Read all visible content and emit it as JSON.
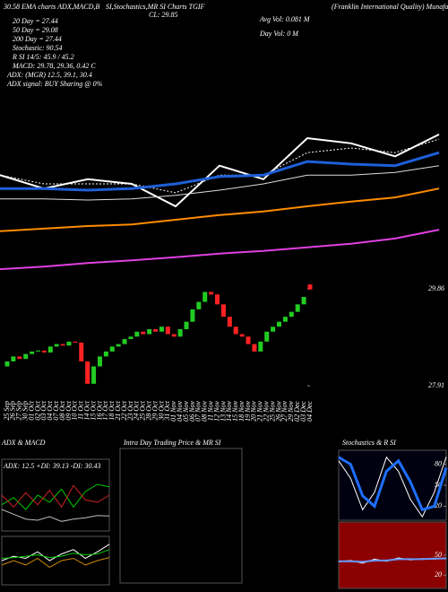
{
  "chart_data": [
    {
      "type": "line",
      "ylim": [
        25.5,
        30.5
      ],
      "annotations": [
        "30.58 EMA charts ADX,MACD,B",
        "SI,Stochastics,MR SI Charts TGIF",
        "(Franklin International Quality) MunafaSutra.com",
        "CL: 29.85",
        "Avg Vol: 0.081 M",
        "Day Vol: 0 M",
        "20 Day = 27.44",
        "50 Day = 29.08",
        "200 Day = 27.44",
        "Stochastic: 90.54",
        "R SI 14/5: 45.9 / 45.2",
        "MACD: 29.78, 29.36, 0.42 C",
        "ADX: (MGR) 12.5, 39.1, 30.4",
        "ADX signal: BUY Sharing @ 0%"
      ],
      "series": [
        {
          "color": "#ffffff",
          "width": 2,
          "values": [
            27.48,
            27.22,
            27.4,
            27.31,
            26.88,
            27.66,
            27.4,
            28.19,
            28.09,
            27.84,
            28.26
          ]
        },
        {
          "color": "#ffffff",
          "width": 1,
          "dashed": true,
          "values": [
            27.48,
            27.31,
            27.31,
            27.31,
            27.14,
            27.48,
            27.48,
            27.91,
            28.0,
            27.91,
            28.17
          ]
        },
        {
          "color": "#1e5fd8",
          "width": 3,
          "values": [
            27.22,
            27.22,
            27.19,
            27.22,
            27.31,
            27.45,
            27.48,
            27.74,
            27.69,
            27.66,
            27.91
          ]
        },
        {
          "color": "#dddddd",
          "width": 1,
          "values": [
            27.02,
            27.02,
            27.0,
            27.02,
            27.09,
            27.19,
            27.31,
            27.48,
            27.48,
            27.53,
            27.66
          ]
        },
        {
          "color": "#ff8c00",
          "width": 2,
          "values": [
            26.4,
            26.45,
            26.5,
            26.53,
            26.62,
            26.71,
            26.78,
            26.88,
            26.97,
            27.05,
            27.22
          ]
        },
        {
          "color": "#e040e0",
          "width": 2,
          "values": [
            25.67,
            25.72,
            25.79,
            25.84,
            25.9,
            25.97,
            26.02,
            26.09,
            26.16,
            26.26,
            26.43
          ]
        }
      ]
    },
    {
      "type": "candlestick",
      "ylim": [
        27.64,
        30.08
      ],
      "yticks": [
        29.86,
        27.91
      ],
      "up_color": "#22cc22",
      "down_color": "#ff2222",
      "categories": [
        "25 Sep",
        "26 Sep",
        "27 Sep",
        "30 Sep",
        "01 Oct",
        "02 Oct",
        "03 Oct",
        "04 Oct",
        "07 Oct",
        "08 Oct",
        "09 Oct",
        "10 Oct",
        "11 Oct",
        "14 Oct",
        "15 Oct",
        "16 Oct",
        "17 Oct",
        "18 Oct",
        "21 Oct",
        "22 Oct",
        "23 Oct",
        "24 Oct",
        "25 Oct",
        "28 Oct",
        "29 Oct",
        "30 Oct",
        "31 Oct",
        "01 Nov",
        "04 Nov",
        "05 Nov",
        "06 Nov",
        "07 Nov",
        "08 Nov",
        "11 Nov",
        "12 Nov",
        "13 Nov",
        "14 Nov",
        "15 Nov",
        "18 Nov",
        "19 Nov",
        "20 Nov",
        "21 Nov",
        "22 Nov",
        "25 Nov",
        "26 Nov",
        "27 Nov",
        "29 Nov",
        "02 Dec",
        "03 Dec",
        "04 Dec"
      ],
      "open": [
        28.3,
        28.4,
        28.5,
        28.45,
        28.55,
        28.6,
        28.62,
        28.58,
        28.7,
        28.75,
        28.72,
        28.8,
        28.78,
        28.4,
        27.95,
        28.3,
        28.5,
        28.6,
        28.7,
        28.75,
        28.85,
        28.9,
        29.0,
        28.95,
        29.05,
        29.0,
        29.1,
        28.95,
        28.9,
        29.05,
        29.2,
        29.45,
        29.6,
        29.8,
        29.75,
        29.55,
        29.3,
        29.1,
        28.95,
        28.9,
        28.75,
        28.6,
        28.8,
        29.0,
        29.1,
        29.2,
        29.3,
        29.4,
        29.55,
        29.95
      ],
      "close": [
        28.4,
        28.5,
        28.45,
        28.55,
        28.6,
        28.62,
        28.58,
        28.7,
        28.75,
        28.72,
        28.8,
        28.78,
        28.4,
        27.95,
        28.3,
        28.5,
        28.6,
        28.7,
        28.75,
        28.85,
        28.9,
        29.0,
        28.95,
        29.05,
        29.0,
        29.1,
        28.95,
        28.9,
        29.05,
        29.2,
        29.45,
        29.6,
        29.8,
        29.75,
        29.55,
        29.3,
        29.1,
        28.95,
        28.9,
        28.75,
        28.6,
        28.8,
        29.0,
        29.1,
        29.2,
        29.3,
        29.4,
        29.55,
        29.7,
        29.85
      ]
    },
    {
      "type": "line",
      "title": "ADX & MACD",
      "subtitle": "ADX: 12.5 +DI: 39.13 -DI: 30.43",
      "ylim": [
        0,
        60
      ],
      "background": "#000000",
      "series": [
        {
          "color": "#00cc00",
          "width": 1,
          "values": [
            22,
            28,
            18,
            30,
            24,
            35,
            20,
            33,
            39,
            37
          ]
        },
        {
          "color": "#cc2222",
          "width": 1,
          "values": [
            30,
            20,
            32,
            22,
            34,
            20,
            38,
            26,
            24,
            30
          ]
        },
        {
          "color": "#bbbbbb",
          "width": 1,
          "values": [
            18,
            14,
            10,
            9,
            12,
            8,
            10,
            11,
            13,
            12.5
          ]
        }
      ]
    },
    {
      "type": "line",
      "ylim": [
        -0.5,
        0.6
      ],
      "background": "#000000",
      "series": [
        {
          "color": "#ffffff",
          "width": 1,
          "values": [
            0.05,
            0.15,
            0.1,
            0.25,
            0.05,
            0.2,
            0.3,
            0.1,
            0.25,
            0.42
          ]
        },
        {
          "color": "#00cc00",
          "width": 1,
          "values": [
            0.1,
            0.12,
            0.15,
            0.18,
            0.12,
            0.15,
            0.22,
            0.18,
            0.2,
            0.3
          ]
        },
        {
          "color": "#cc8800",
          "width": 1,
          "values": [
            -0.05,
            0.05,
            -0.05,
            0.1,
            -0.1,
            0.05,
            0.1,
            -0.05,
            0.05,
            0.12
          ]
        }
      ]
    },
    {
      "type": "line",
      "title": "Intra Day Trading Price & MR SI",
      "background": "#000000",
      "series": []
    },
    {
      "type": "line",
      "title": "Stochastics & R SI",
      "ylim": [
        0,
        100
      ],
      "yticks": [
        80,
        50,
        20
      ],
      "background": "#000010",
      "series": [
        {
          "color": "#ffffff",
          "width": 1,
          "values": [
            85,
            60,
            15,
            40,
            90,
            70,
            30,
            5,
            40,
            90.54
          ]
        },
        {
          "color": "#1e6fff",
          "width": 3,
          "values": [
            90,
            80,
            35,
            20,
            70,
            85,
            55,
            15,
            20,
            75
          ]
        }
      ]
    },
    {
      "type": "line",
      "ylim": [
        0,
        100
      ],
      "yticks": [
        50,
        20
      ],
      "background": "#8b0000",
      "series": [
        {
          "color": "#ffffff",
          "width": 1,
          "values": [
            40,
            42,
            38,
            44,
            41,
            46,
            43,
            45,
            44,
            45.9
          ]
        },
        {
          "color": "#6699ff",
          "width": 2,
          "values": [
            41,
            41,
            40,
            42,
            42,
            44,
            44,
            44,
            45,
            45.2
          ]
        }
      ]
    }
  ]
}
